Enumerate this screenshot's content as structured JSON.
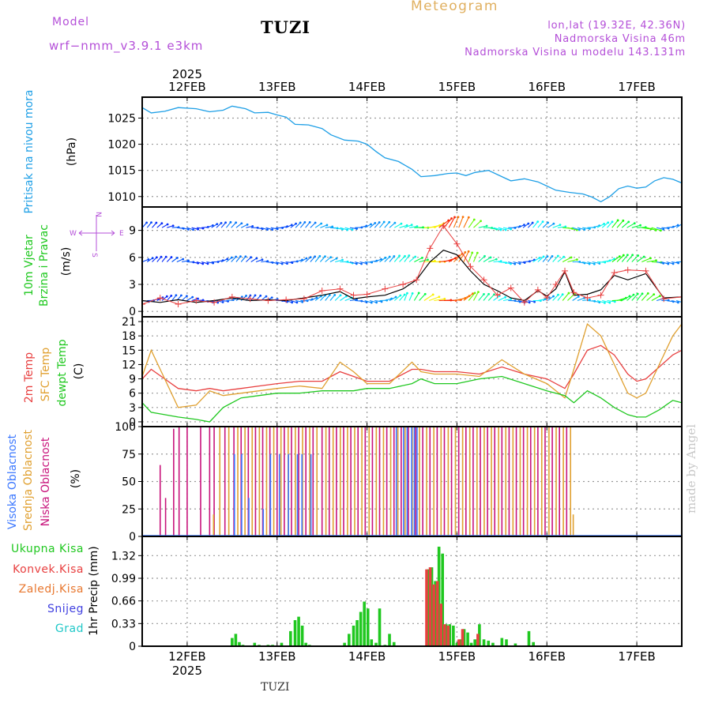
{
  "header": {
    "model_label": "Model",
    "model_name": "wrf−nmm_v3.9.1  e3km",
    "station": "TUZI",
    "meteogram_title": "Meteogram",
    "lonlat": "lon,lat (19.32E, 42.36N)",
    "alt_station": "Nadmorska Visina 46m",
    "alt_model": "Nadmorska Visina u modelu 143.131m"
  },
  "footer": {
    "station": "TUZI",
    "watermark": "made by Angel"
  },
  "colors": {
    "pressure": "#1e9fe6",
    "wind_label": "#1ec81e",
    "purple": "#b44fd8",
    "t2m": "#e84040",
    "tsfc": "#e0a030",
    "dewpt": "#20c820",
    "high_cloud": "#3c78ff",
    "mid_cloud": "#e0a030",
    "low_cloud": "#c8147c",
    "total_precip": "#20c820",
    "conv_precip": "#e84040",
    "frz_precip": "#e87830",
    "snow": "#4040e0",
    "hail": "#20c8c8"
  },
  "time_axis": {
    "year": "2025",
    "start_day": 11.5,
    "end_day": 17.5,
    "day_ticks": [
      {
        "day": 12,
        "label": "12FEB"
      },
      {
        "day": 13,
        "label": "13FEB"
      },
      {
        "day": 14,
        "label": "14FEB"
      },
      {
        "day": 15,
        "label": "15FEB"
      },
      {
        "day": 16,
        "label": "16FEB"
      },
      {
        "day": 17,
        "label": "17FEB"
      }
    ]
  },
  "chart_data": [
    {
      "type": "line",
      "id": "pressure",
      "ylabel_main": "Pritisak na nivou mora",
      "ylabel_unit": "(hPa)",
      "ylim": [
        1008,
        1029
      ],
      "yticks": [
        1010,
        1015,
        1020,
        1025
      ],
      "series": [
        {
          "name": "MSLP",
          "x": [
            11.5,
            11.6,
            11.75,
            11.9,
            12.1,
            12.25,
            12.4,
            12.5,
            12.65,
            12.75,
            12.9,
            13.0,
            13.1,
            13.2,
            13.35,
            13.5,
            13.6,
            13.75,
            13.9,
            14.0,
            14.1,
            14.2,
            14.35,
            14.5,
            14.6,
            14.75,
            14.9,
            15.0,
            15.1,
            15.2,
            15.35,
            15.5,
            15.6,
            15.75,
            15.9,
            16.0,
            16.1,
            16.25,
            16.4,
            16.5,
            16.6,
            16.7,
            16.8,
            16.9,
            17.0,
            17.1,
            17.2,
            17.3,
            17.4,
            17.5
          ],
          "y": [
            1027.0,
            1026.0,
            1026.3,
            1027.0,
            1026.8,
            1026.2,
            1026.5,
            1027.3,
            1026.8,
            1026.0,
            1026.1,
            1025.6,
            1025.2,
            1023.8,
            1023.7,
            1023.0,
            1021.8,
            1020.8,
            1020.6,
            1020.0,
            1018.6,
            1017.4,
            1016.7,
            1015.2,
            1013.8,
            1014.0,
            1014.4,
            1014.5,
            1014.0,
            1014.6,
            1015.0,
            1013.8,
            1013.0,
            1013.4,
            1012.8,
            1012.0,
            1011.2,
            1010.8,
            1010.5,
            1009.9,
            1009.0,
            1010.0,
            1011.5,
            1012.0,
            1011.6,
            1011.8,
            1013.0,
            1013.6,
            1013.3,
            1012.6
          ]
        }
      ]
    },
    {
      "type": "line",
      "id": "wind",
      "ylabel_main": "10m Vjetar",
      "ylabel_sub": "Brzina i Pravac",
      "ylabel_unit": "(m/s)",
      "compass": {
        "n": "N",
        "s": "S",
        "e": "E",
        "w": "W"
      },
      "ylim": [
        -0.6,
        11.6
      ],
      "yticks": [
        0,
        3,
        6,
        9
      ],
      "series": [
        {
          "name": "speed",
          "x": [
            11.5,
            11.7,
            11.9,
            12.1,
            12.3,
            12.5,
            12.7,
            12.9,
            13.1,
            13.3,
            13.5,
            13.7,
            13.85,
            14.0,
            14.2,
            14.4,
            14.55,
            14.7,
            14.85,
            15.0,
            15.15,
            15.3,
            15.45,
            15.6,
            15.75,
            15.9,
            16.0,
            16.1,
            16.2,
            16.3,
            16.45,
            16.6,
            16.75,
            16.9,
            17.1,
            17.3,
            17.5
          ],
          "y": [
            1.2,
            1.0,
            1.3,
            1.0,
            1.2,
            1.5,
            1.2,
            1.3,
            1.2,
            1.5,
            1.8,
            2.2,
            1.4,
            1.6,
            1.8,
            2.5,
            3.5,
            5.5,
            6.8,
            6.3,
            4.5,
            3.0,
            2.3,
            1.5,
            1.2,
            2.3,
            1.7,
            2.5,
            4.4,
            1.8,
            1.9,
            2.4,
            4.0,
            3.5,
            4.2,
            1.5,
            1.6
          ]
        },
        {
          "name": "gust",
          "x": [
            11.5,
            11.7,
            11.9,
            12.1,
            12.3,
            12.5,
            12.7,
            12.9,
            13.1,
            13.3,
            13.5,
            13.7,
            13.85,
            14.0,
            14.2,
            14.4,
            14.55,
            14.7,
            14.85,
            15.0,
            15.15,
            15.3,
            15.45,
            15.6,
            15.75,
            15.9,
            16.0,
            16.1,
            16.2,
            16.3,
            16.45,
            16.6,
            16.75,
            16.9,
            17.1,
            17.3,
            17.5
          ],
          "y": [
            0.8,
            1.5,
            0.8,
            1.2,
            1.0,
            1.6,
            1.4,
            1.2,
            1.3,
            1.4,
            2.3,
            2.5,
            1.8,
            1.9,
            2.5,
            3.0,
            3.5,
            7.0,
            9.5,
            7.5,
            5.0,
            3.5,
            1.8,
            2.6,
            1.0,
            2.4,
            1.5,
            3.0,
            4.5,
            2.1,
            1.5,
            1.8,
            4.3,
            4.6,
            4.5,
            1.4,
            1.6
          ]
        }
      ],
      "arrow_rows": [
        1.2,
        5.5,
        9.3
      ]
    },
    {
      "type": "line",
      "id": "temperature",
      "ylabel_lines": [
        "2m Temp",
        "SFC Temp",
        "dewpt Temp"
      ],
      "ylabel_unit": "(C)",
      "ylim": [
        -1,
        22
      ],
      "yticks": [
        0,
        3,
        6,
        9,
        12,
        15,
        18,
        21
      ],
      "series": [
        {
          "name": "2m Temp",
          "x": [
            11.5,
            11.6,
            11.75,
            11.9,
            12.1,
            12.25,
            12.4,
            12.6,
            12.8,
            13.0,
            13.25,
            13.5,
            13.7,
            13.85,
            14.0,
            14.25,
            14.5,
            14.6,
            14.75,
            15.0,
            15.25,
            15.5,
            15.75,
            16.0,
            16.2,
            16.3,
            16.45,
            16.6,
            16.75,
            16.9,
            17.0,
            17.1,
            17.25,
            17.4,
            17.5
          ],
          "y": [
            9.0,
            11.0,
            9.0,
            7.0,
            6.5,
            7.0,
            6.5,
            7.0,
            7.5,
            8.0,
            8.5,
            8.5,
            10.5,
            9.5,
            8.5,
            8.5,
            11.0,
            11.0,
            10.5,
            10.5,
            10.0,
            11.5,
            10.0,
            9.0,
            7.0,
            10.0,
            15.0,
            16.0,
            14.0,
            10.0,
            8.5,
            9.0,
            11.5,
            14.0,
            15.0
          ]
        },
        {
          "name": "SFC Temp",
          "x": [
            11.5,
            11.6,
            11.75,
            11.9,
            12.1,
            12.25,
            12.4,
            12.6,
            12.8,
            13.0,
            13.25,
            13.5,
            13.7,
            13.85,
            14.0,
            14.25,
            14.5,
            14.6,
            14.75,
            15.0,
            15.25,
            15.5,
            15.75,
            16.0,
            16.2,
            16.3,
            16.45,
            16.6,
            16.75,
            16.9,
            17.0,
            17.1,
            17.25,
            17.4,
            17.5
          ],
          "y": [
            9.5,
            15.0,
            9.0,
            3.0,
            3.5,
            6.5,
            5.5,
            6.0,
            6.5,
            7.0,
            7.5,
            7.0,
            12.5,
            10.5,
            8.0,
            8.0,
            12.5,
            10.5,
            10.0,
            10.0,
            9.5,
            13.0,
            10.0,
            8.0,
            5.0,
            11.0,
            20.5,
            18.0,
            12.0,
            6.0,
            5.0,
            6.0,
            12.0,
            18.0,
            20.5
          ]
        },
        {
          "name": "dewpt Temp",
          "x": [
            11.5,
            11.6,
            11.75,
            11.9,
            12.1,
            12.25,
            12.4,
            12.6,
            12.8,
            13.0,
            13.25,
            13.5,
            13.7,
            13.85,
            14.0,
            14.25,
            14.5,
            14.6,
            14.75,
            15.0,
            15.25,
            15.5,
            15.75,
            16.0,
            16.2,
            16.3,
            16.45,
            16.6,
            16.75,
            16.9,
            17.0,
            17.1,
            17.25,
            17.4,
            17.5
          ],
          "y": [
            4.0,
            2.0,
            1.5,
            1.0,
            0.5,
            0.0,
            3.0,
            5.0,
            5.5,
            6.0,
            6.0,
            6.5,
            6.5,
            6.5,
            7.0,
            7.0,
            8.0,
            9.0,
            8.0,
            8.0,
            9.0,
            9.5,
            8.0,
            6.5,
            5.5,
            4.0,
            6.5,
            5.0,
            3.0,
            1.5,
            1.0,
            1.0,
            2.5,
            4.5,
            4.0
          ]
        }
      ]
    },
    {
      "type": "bar",
      "id": "cloud",
      "ylabel_lines": [
        "Visoka Oblacnost",
        "Srednja Oblacnost",
        "Niska Oblacnost"
      ],
      "ylabel_unit": "(%)",
      "ylim": [
        0,
        100
      ],
      "yticks": [
        0,
        25,
        50,
        75,
        100
      ],
      "series": [
        {
          "name": "Niska Oblacnost",
          "x": [
            11.7,
            11.76,
            11.85,
            11.91,
            12.0,
            12.15,
            12.25,
            12.3,
            12.42,
            12.52,
            12.6,
            12.68,
            12.76,
            12.84,
            12.92,
            13.0,
            13.08,
            13.16,
            13.24,
            13.32,
            13.4,
            13.5,
            13.58,
            13.66,
            13.74,
            13.82,
            13.9,
            13.98,
            14.06,
            14.14,
            14.22,
            14.3,
            14.38,
            14.46,
            14.54,
            14.62,
            14.7,
            14.78,
            14.86,
            14.94,
            15.02,
            15.1,
            15.18,
            15.26,
            15.34,
            15.42,
            15.5,
            15.58,
            15.66,
            15.74,
            15.82,
            15.9,
            15.98,
            16.06,
            16.14,
            16.22
          ],
          "values": [
            65,
            35,
            98,
            100,
            100,
            100,
            100,
            100,
            100,
            100,
            100,
            100,
            100,
            100,
            100,
            100,
            100,
            100,
            100,
            100,
            100,
            100,
            100,
            100,
            100,
            100,
            100,
            100,
            100,
            100,
            100,
            100,
            100,
            100,
            100,
            100,
            100,
            100,
            100,
            100,
            100,
            100,
            100,
            100,
            100,
            100,
            100,
            100,
            100,
            100,
            100,
            100,
            100,
            100,
            100,
            100
          ]
        },
        {
          "name": "Srednja Oblacnost",
          "x": [
            12.28,
            12.35,
            12.45,
            12.55,
            12.63,
            12.71,
            12.79,
            12.87,
            12.95,
            13.03,
            13.11,
            13.19,
            13.27,
            13.35,
            13.43,
            13.53,
            13.61,
            13.69,
            13.77,
            13.85,
            13.93,
            14.01,
            14.09,
            14.17,
            14.25,
            14.33,
            14.41,
            14.49,
            14.57,
            14.65,
            14.73,
            14.81,
            14.89,
            14.97,
            15.05,
            15.13,
            15.21,
            15.29,
            15.37,
            15.45,
            15.53,
            15.61,
            15.69,
            15.77,
            15.85,
            15.93,
            16.01,
            16.09,
            16.17,
            16.25,
            16.28
          ],
          "values": [
            20,
            100,
            100,
            100,
            100,
            100,
            100,
            100,
            100,
            100,
            100,
            100,
            100,
            100,
            100,
            100,
            100,
            100,
            100,
            100,
            100,
            100,
            100,
            100,
            100,
            100,
            100,
            100,
            100,
            100,
            100,
            100,
            100,
            100,
            100,
            100,
            100,
            100,
            100,
            100,
            100,
            100,
            100,
            100,
            100,
            100,
            100,
            100,
            100,
            100,
            20
          ]
        },
        {
          "name": "Visoka Oblacnost",
          "x": [
            12.5,
            12.58,
            12.66,
            12.82,
            12.9,
            13.0,
            13.1,
            13.2,
            13.25,
            13.35,
            14.3,
            14.38,
            14.42,
            14.47,
            14.5,
            14.53
          ],
          "values": [
            75,
            75,
            35,
            25,
            75,
            75,
            75,
            75,
            75,
            75,
            100,
            100,
            100,
            100,
            100,
            100
          ]
        }
      ]
    },
    {
      "type": "bar",
      "id": "precip",
      "legend": [
        "Ukupna Kisa",
        "Konvek.Kisa",
        "Zaledj.Kisa",
        "Snijeg",
        "Grad"
      ],
      "ylabel_unit": "1hr Precip (mm)",
      "ylim": [
        0,
        1.6
      ],
      "yticks": [
        0,
        0.33,
        0.66,
        0.99,
        1.32
      ],
      "ytick_labels": [
        "0",
        "0.33",
        "0.66",
        "0.99",
        "1.32"
      ],
      "series": [
        {
          "name": "Ukupna Kisa",
          "x": [
            12.5,
            12.54,
            12.58,
            12.62,
            12.75,
            12.8,
            12.9,
            12.95,
            13.05,
            13.15,
            13.2,
            13.24,
            13.28,
            13.32,
            13.36,
            13.75,
            13.8,
            13.85,
            13.89,
            13.93,
            13.97,
            14.01,
            14.05,
            14.1,
            14.14,
            14.2,
            14.25,
            14.3,
            14.68,
            14.72,
            14.76,
            14.8,
            14.84,
            14.88,
            14.92,
            14.96,
            15.0,
            15.04,
            15.08,
            15.12,
            15.16,
            15.2,
            15.25,
            15.3,
            15.35,
            15.4,
            15.5,
            15.55,
            15.65,
            15.8,
            15.85
          ],
          "values": [
            0.12,
            0.18,
            0.06,
            0.02,
            0.05,
            0.02,
            0.02,
            0.02,
            0.05,
            0.22,
            0.38,
            0.43,
            0.3,
            0.05,
            0.02,
            0.05,
            0.18,
            0.3,
            0.38,
            0.5,
            0.65,
            0.55,
            0.1,
            0.05,
            0.55,
            0.02,
            0.18,
            0.06,
            1.12,
            1.15,
            0.95,
            1.45,
            1.35,
            0.32,
            0.32,
            0.3,
            0.05,
            0.1,
            0.25,
            0.2,
            0.05,
            0.1,
            0.32,
            0.1,
            0.08,
            0.05,
            0.12,
            0.1,
            0.04,
            0.22,
            0.06
          ]
        },
        {
          "name": "Konvek.Kisa",
          "x": [
            14.68,
            14.72,
            14.76,
            14.8,
            14.84,
            14.88,
            14.92,
            15.04,
            15.08,
            15.25
          ],
          "values": [
            1.12,
            1.15,
            0.9,
            0.95,
            0.62,
            0.32,
            0.3,
            0.1,
            0.25,
            0.18
          ]
        }
      ]
    }
  ]
}
